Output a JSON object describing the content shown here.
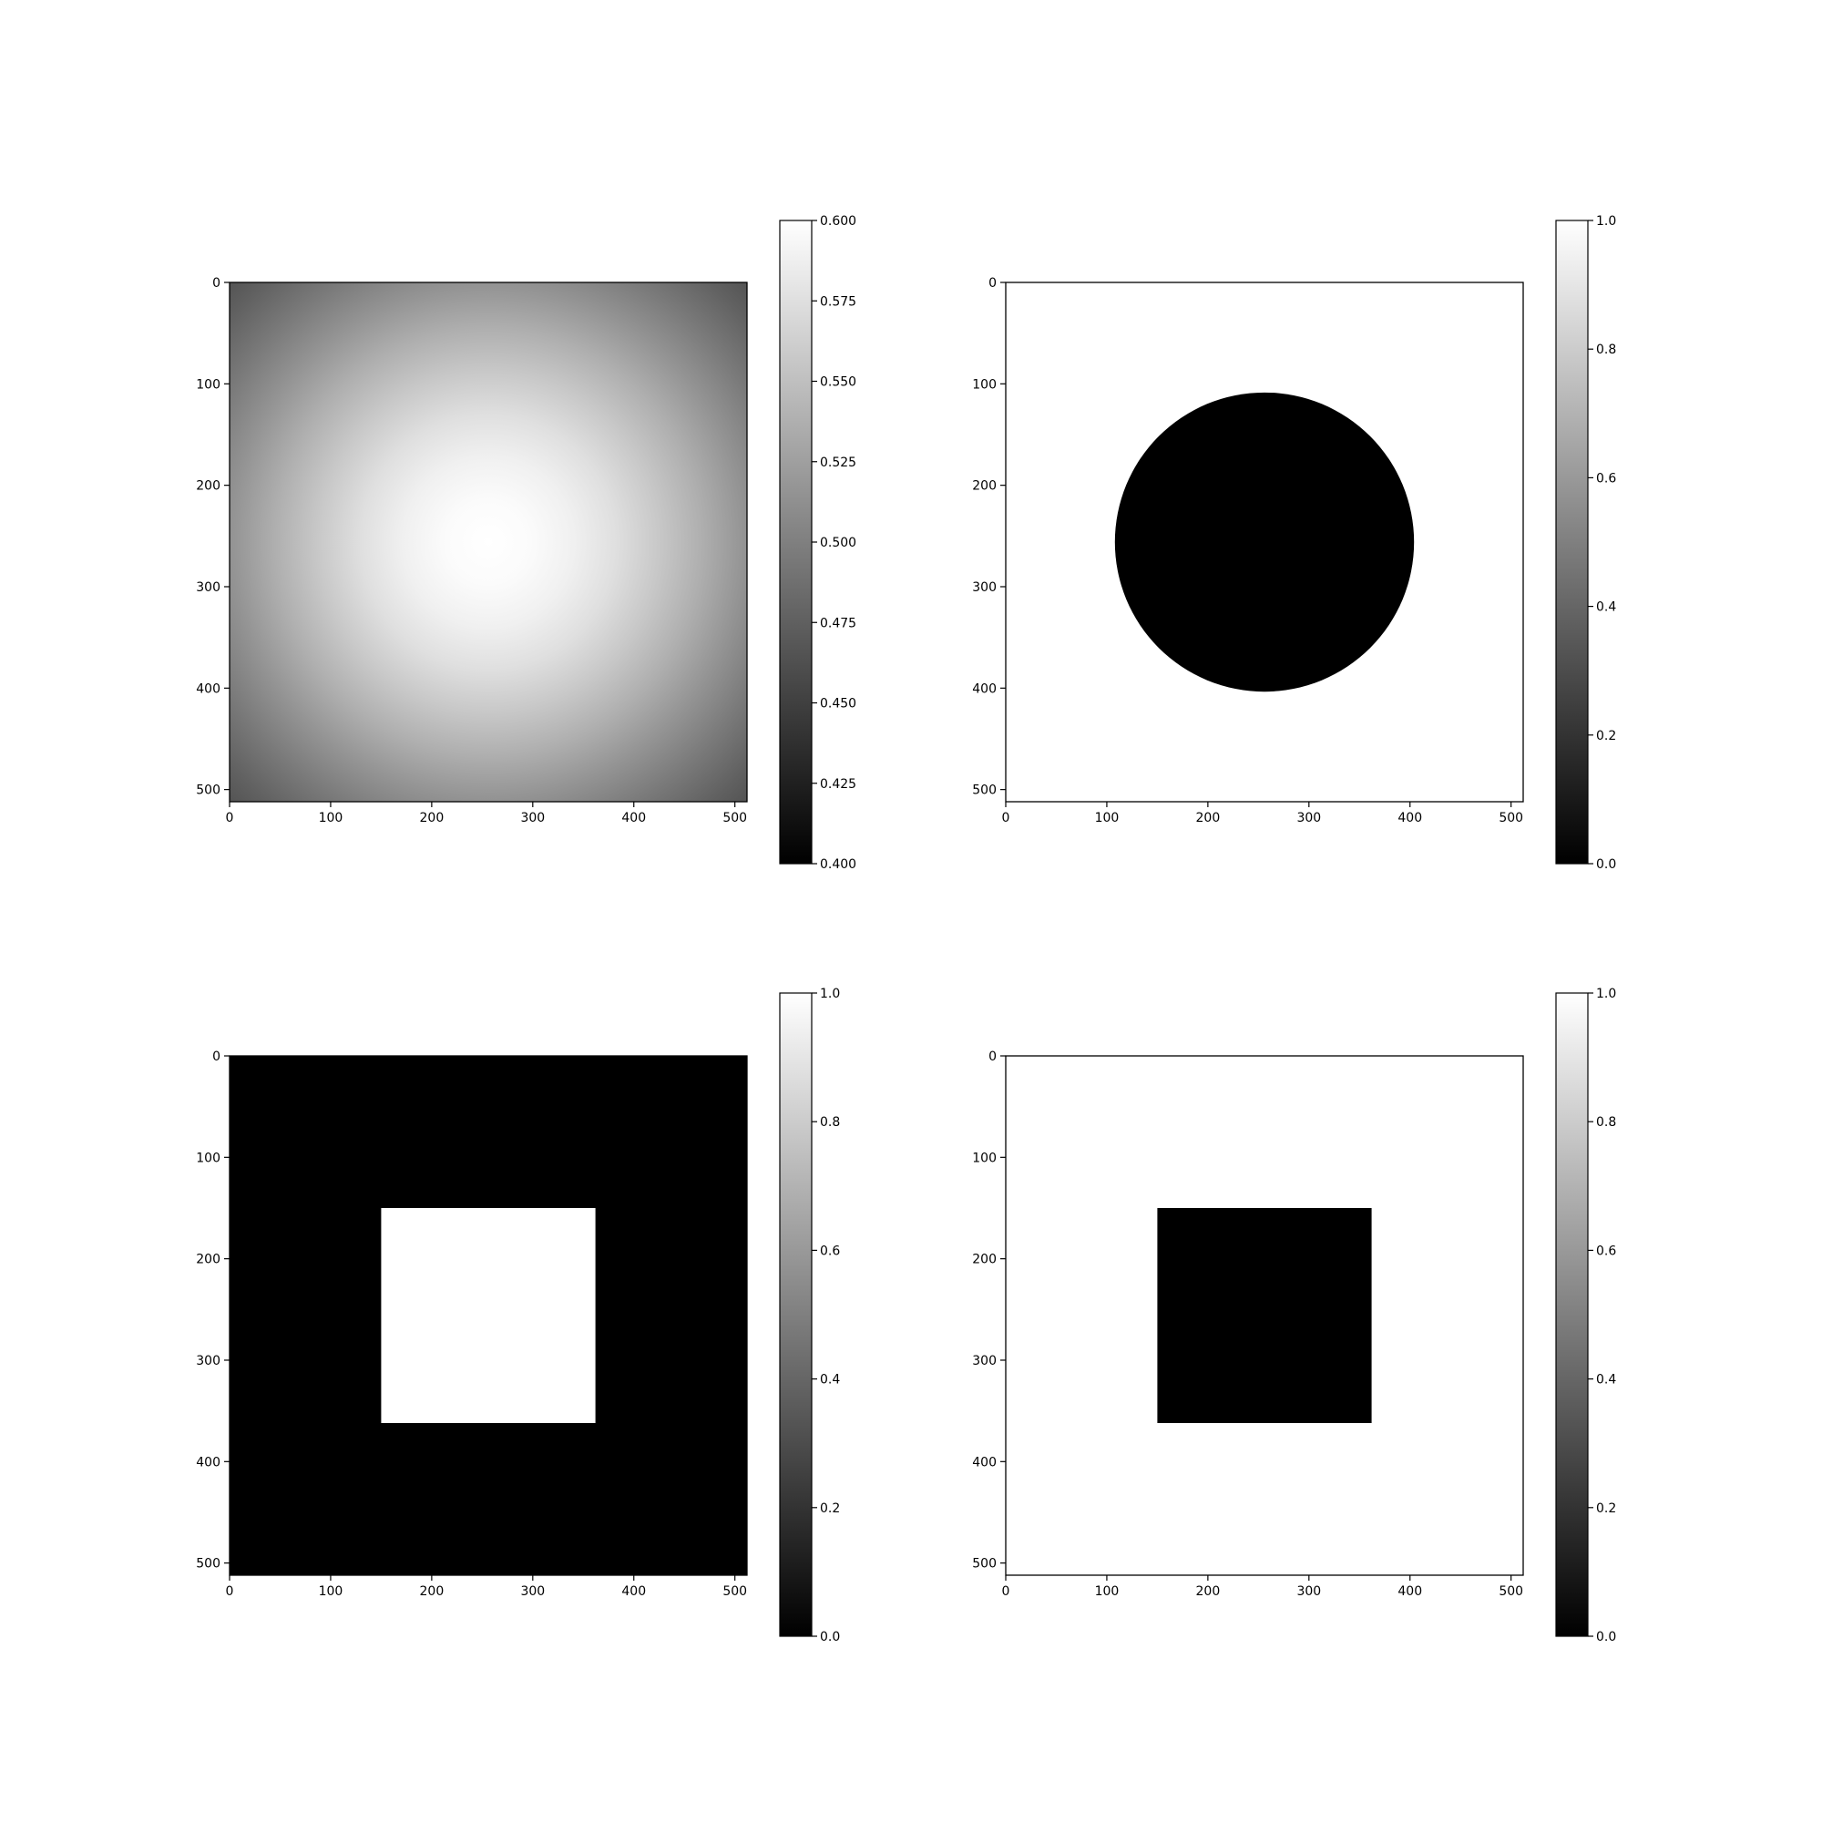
{
  "chart_data": [
    {
      "type": "heatmap",
      "panel": "top-left",
      "description": "radial gaussian intensity field, brightest at center",
      "x_ticks": [
        "0",
        "100",
        "200",
        "300",
        "400",
        "500"
      ],
      "y_ticks": [
        "0",
        "100",
        "200",
        "300",
        "400",
        "500"
      ],
      "xlim": [
        0,
        512
      ],
      "ylim": [
        512,
        0
      ],
      "image": {
        "shape": "gaussian",
        "center": [
          256,
          256
        ],
        "sigma": 230,
        "min_value": 0.4,
        "max_value": 0.6,
        "background_value": 0.4
      },
      "colormap": "gray",
      "colorbar": {
        "vmin": 0.4,
        "vmax": 0.6,
        "ticks": [
          0.4,
          0.425,
          0.45,
          0.475,
          0.5,
          0.525,
          0.55,
          0.575,
          0.6
        ],
        "tick_labels": [
          "0.400",
          "0.425",
          "0.450",
          "0.475",
          "0.500",
          "0.525",
          "0.550",
          "0.575",
          "0.600"
        ]
      }
    },
    {
      "type": "heatmap",
      "panel": "top-right",
      "description": "binary mask: white background with black disk",
      "x_ticks": [
        "0",
        "100",
        "200",
        "300",
        "400",
        "500"
      ],
      "y_ticks": [
        "0",
        "100",
        "200",
        "300",
        "400",
        "500"
      ],
      "xlim": [
        0,
        512
      ],
      "ylim": [
        512,
        0
      ],
      "image": {
        "shape": "circle",
        "background_value": 1,
        "shape_value": 0,
        "center": [
          256,
          256
        ],
        "radius": 148
      },
      "colormap": "gray",
      "colorbar": {
        "vmin": 0,
        "vmax": 1,
        "ticks": [
          0,
          0.2,
          0.4,
          0.6,
          0.8,
          1
        ],
        "tick_labels": [
          "0.0",
          "0.2",
          "0.4",
          "0.6",
          "0.8",
          "1.0"
        ]
      }
    },
    {
      "type": "heatmap",
      "panel": "bottom-left",
      "description": "binary mask: black background with white square",
      "x_ticks": [
        "0",
        "100",
        "200",
        "300",
        "400",
        "500"
      ],
      "y_ticks": [
        "0",
        "100",
        "200",
        "300",
        "400",
        "500"
      ],
      "xlim": [
        0,
        512
      ],
      "ylim": [
        512,
        0
      ],
      "image": {
        "shape": "rect",
        "background_value": 0,
        "shape_value": 1,
        "x_range": [
          150,
          362
        ],
        "y_range": [
          150,
          362
        ]
      },
      "colormap": "gray",
      "colorbar": {
        "vmin": 0,
        "vmax": 1,
        "ticks": [
          0,
          0.2,
          0.4,
          0.6,
          0.8,
          1
        ],
        "tick_labels": [
          "0.0",
          "0.2",
          "0.4",
          "0.6",
          "0.8",
          "1.0"
        ]
      }
    },
    {
      "type": "heatmap",
      "panel": "bottom-right",
      "description": "binary mask: white background with black square",
      "x_ticks": [
        "0",
        "100",
        "200",
        "300",
        "400",
        "500"
      ],
      "y_ticks": [
        "0",
        "100",
        "200",
        "300",
        "400",
        "500"
      ],
      "xlim": [
        0,
        512
      ],
      "ylim": [
        512,
        0
      ],
      "image": {
        "shape": "rect",
        "background_value": 1,
        "shape_value": 0,
        "x_range": [
          150,
          362
        ],
        "y_range": [
          150,
          362
        ]
      },
      "colormap": "gray",
      "colorbar": {
        "vmin": 0,
        "vmax": 1,
        "ticks": [
          0,
          0.2,
          0.4,
          0.6,
          0.8,
          1
        ],
        "tick_labels": [
          "0.0",
          "0.2",
          "0.4",
          "0.6",
          "0.8",
          "1.0"
        ]
      }
    }
  ]
}
